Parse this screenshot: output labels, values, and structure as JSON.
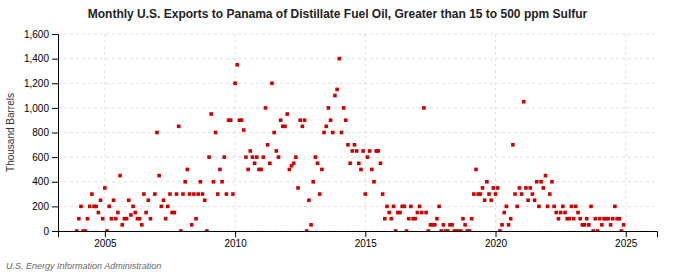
{
  "chart_data": {
    "type": "scatter",
    "title": "Monthly U.S. Exports to Panama of Distillate Fuel Oil, Greater than 15 to 500 ppm Sulfur",
    "ylabel": "Thousand Barrels",
    "source": "U.S. Energy Information Administration",
    "color": "#cc0000",
    "marker": "square",
    "grid": true,
    "xlim": [
      2003.2,
      2026.2
    ],
    "ylim": [
      0,
      1600
    ],
    "xticks": [
      2005,
      2010,
      2015,
      2020,
      2025
    ],
    "yticks": [
      0,
      200,
      400,
      600,
      800,
      {
        "value": 1000,
        "label": "1,000"
      },
      {
        "value": 1200,
        "label": "1,200"
      },
      {
        "value": 1400,
        "label": "1,400"
      },
      {
        "value": 1600,
        "label": "1,600"
      }
    ],
    "x": [
      2003.917,
      2004,
      2004.083,
      2004.167,
      2004.25,
      2004.333,
      2004.417,
      2004.5,
      2004.583,
      2004.667,
      2004.75,
      2004.833,
      2004.917,
      2005,
      2005.083,
      2005.167,
      2005.25,
      2005.333,
      2005.417,
      2005.5,
      2005.583,
      2005.667,
      2005.75,
      2005.833,
      2005.917,
      2006,
      2006.083,
      2006.167,
      2006.25,
      2006.333,
      2006.417,
      2006.5,
      2006.583,
      2006.667,
      2006.75,
      2006.917,
      2007,
      2007.083,
      2007.167,
      2007.25,
      2007.333,
      2007.417,
      2007.5,
      2007.583,
      2007.667,
      2007.75,
      2007.833,
      2007.917,
      2008,
      2008.083,
      2008.167,
      2008.25,
      2008.333,
      2008.417,
      2008.5,
      2008.583,
      2008.667,
      2008.75,
      2008.833,
      2008.917,
      2009,
      2009.083,
      2009.167,
      2009.25,
      2009.333,
      2009.417,
      2009.5,
      2009.583,
      2009.667,
      2009.75,
      2009.833,
      2009.917,
      2010,
      2010.083,
      2010.167,
      2010.25,
      2010.333,
      2010.417,
      2010.5,
      2010.583,
      2010.667,
      2010.75,
      2010.833,
      2010.917,
      2011,
      2011.083,
      2011.167,
      2011.25,
      2011.333,
      2011.417,
      2011.5,
      2011.583,
      2011.667,
      2011.75,
      2011.833,
      2011.917,
      2012,
      2012.083,
      2012.167,
      2012.25,
      2012.333,
      2012.417,
      2012.5,
      2012.583,
      2012.667,
      2012.75,
      2012.833,
      2012.917,
      2013,
      2013.083,
      2013.167,
      2013.25,
      2013.333,
      2013.417,
      2013.5,
      2013.583,
      2013.667,
      2013.75,
      2013.833,
      2013.917,
      2014,
      2014.083,
      2014.167,
      2014.25,
      2014.333,
      2014.417,
      2014.5,
      2014.583,
      2014.667,
      2014.75,
      2014.833,
      2014.917,
      2015,
      2015.083,
      2015.167,
      2015.25,
      2015.333,
      2015.417,
      2015.5,
      2015.583,
      2015.667,
      2015.75,
      2015.833,
      2015.917,
      2016,
      2016.083,
      2016.167,
      2016.25,
      2016.333,
      2016.417,
      2016.5,
      2016.583,
      2016.667,
      2016.75,
      2016.833,
      2016.917,
      2017,
      2017.083,
      2017.167,
      2017.25,
      2017.333,
      2017.417,
      2017.5,
      2017.583,
      2017.667,
      2017.75,
      2017.833,
      2017.917,
      2018,
      2018.083,
      2018.167,
      2018.25,
      2018.333,
      2018.417,
      2018.5,
      2018.583,
      2018.667,
      2018.75,
      2018.833,
      2018.917,
      2019,
      2019.083,
      2019.167,
      2019.25,
      2019.333,
      2019.417,
      2019.5,
      2019.583,
      2019.667,
      2019.75,
      2019.833,
      2019.917,
      2020,
      2020.083,
      2020.167,
      2020.25,
      2020.333,
      2020.417,
      2020.5,
      2020.583,
      2020.667,
      2020.75,
      2020.833,
      2020.917,
      2021,
      2021.083,
      2021.167,
      2021.25,
      2021.333,
      2021.417,
      2021.5,
      2021.583,
      2021.667,
      2021.75,
      2021.833,
      2021.917,
      2022,
      2022.083,
      2022.167,
      2022.25,
      2022.333,
      2022.417,
      2022.5,
      2022.583,
      2022.667,
      2022.75,
      2022.833,
      2022.917,
      2023,
      2023.083,
      2023.167,
      2023.25,
      2023.333,
      2023.417,
      2023.5,
      2023.583,
      2023.667,
      2023.75,
      2023.833,
      2023.917,
      2024,
      2024.083,
      2024.167,
      2024.25,
      2024.333,
      2024.417,
      2024.5,
      2024.583,
      2024.667,
      2024.75,
      2024.833,
      2024.917
    ],
    "values": [
      0,
      100,
      200,
      0,
      0,
      100,
      200,
      300,
      200,
      200,
      150,
      250,
      100,
      350,
      0,
      200,
      100,
      250,
      100,
      150,
      450,
      50,
      100,
      100,
      250,
      130,
      200,
      150,
      100,
      100,
      50,
      300,
      150,
      250,
      100,
      300,
      800,
      450,
      200,
      250,
      100,
      200,
      300,
      150,
      150,
      300,
      850,
      0,
      300,
      400,
      500,
      300,
      50,
      300,
      100,
      300,
      400,
      300,
      250,
      0,
      600,
      950,
      400,
      800,
      300,
      500,
      400,
      600,
      300,
      900,
      900,
      300,
      1200,
      1350,
      900,
      900,
      820,
      600,
      500,
      650,
      600,
      550,
      600,
      500,
      500,
      600,
      1000,
      700,
      550,
      1200,
      800,
      650,
      600,
      900,
      850,
      850,
      950,
      500,
      530,
      550,
      600,
      350,
      900,
      850,
      900,
      0,
      250,
      50,
      400,
      600,
      550,
      300,
      500,
      800,
      850,
      1000,
      900,
      800,
      1100,
      1150,
      1400,
      800,
      1000,
      900,
      700,
      550,
      650,
      700,
      650,
      550,
      500,
      650,
      300,
      600,
      650,
      500,
      400,
      650,
      650,
      550,
      300,
      100,
      200,
      150,
      100,
      200,
      0,
      150,
      150,
      200,
      200,
      0,
      100,
      200,
      100,
      100,
      150,
      200,
      150,
      1000,
      150,
      0,
      50,
      50,
      50,
      100,
      200,
      0,
      50,
      0,
      0,
      50,
      50,
      0,
      0,
      0,
      0,
      100,
      50,
      0,
      0,
      100,
      300,
      500,
      300,
      300,
      350,
      250,
      400,
      300,
      250,
      350,
      300,
      350,
      0,
      50,
      150,
      200,
      50,
      100,
      700,
      300,
      200,
      350,
      300,
      1050,
      350,
      250,
      350,
      300,
      250,
      400,
      200,
      400,
      350,
      450,
      200,
      300,
      400,
      200,
      150,
      100,
      150,
      200,
      150,
      100,
      100,
      200,
      100,
      200,
      150,
      100,
      50,
      50,
      100,
      50,
      200,
      0,
      100,
      0,
      100,
      50,
      100,
      100,
      100,
      50,
      100,
      200,
      100,
      100,
      0,
      50
    ]
  }
}
